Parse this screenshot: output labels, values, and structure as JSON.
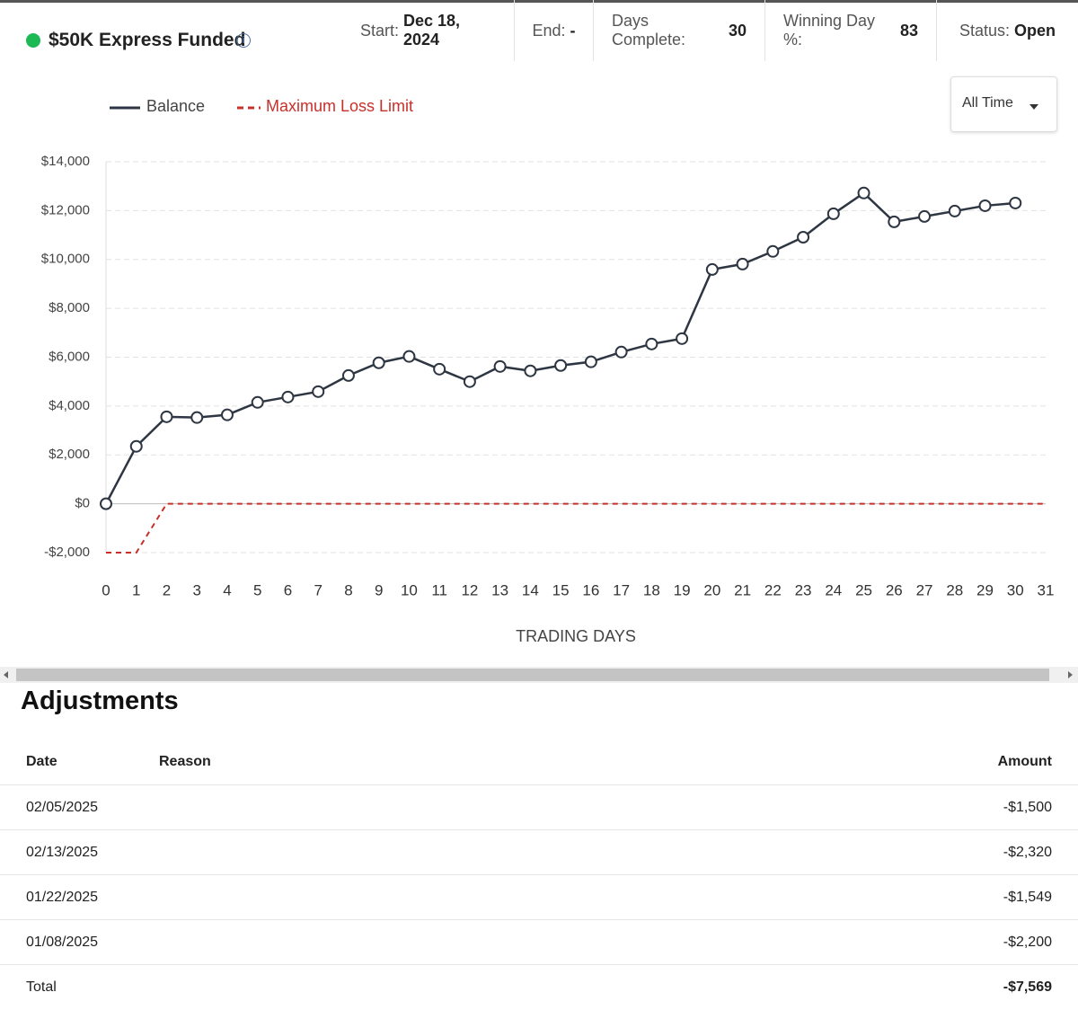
{
  "header": {
    "title": "$50K Express Funded",
    "stats": [
      {
        "label": "Start:",
        "value": "Dec 18, 2024"
      },
      {
        "label": "End:",
        "value": "-"
      },
      {
        "label": "Days Complete:",
        "value": "30"
      },
      {
        "label": "Winning Day %:",
        "value": "83"
      },
      {
        "label": "Status:",
        "value": "Open"
      }
    ]
  },
  "range_select": "All Time",
  "chart_data": {
    "type": "line",
    "xlabel": "TRADING DAYS",
    "x": [
      0,
      1,
      2,
      3,
      4,
      5,
      6,
      7,
      8,
      9,
      10,
      11,
      12,
      13,
      14,
      15,
      16,
      17,
      18,
      19,
      20,
      21,
      22,
      23,
      24,
      25,
      26,
      27,
      28,
      29,
      30,
      31
    ],
    "series": [
      {
        "name": "Balance",
        "color": "#2d3642",
        "values": [
          0,
          2350,
          3560,
          3530,
          3640,
          4150,
          4370,
          4590,
          5250,
          5770,
          6030,
          5510,
          5000,
          5620,
          5440,
          5660,
          5810,
          6210,
          6540,
          6760,
          9590,
          9810,
          10330,
          10910,
          11870,
          12720,
          11540,
          11760,
          11980,
          12200,
          12310,
          null
        ]
      },
      {
        "name": "Maximum Loss Limit",
        "color": "#c8302a",
        "dashed": true,
        "values": [
          -2000,
          -2000,
          0,
          0,
          0,
          0,
          0,
          0,
          0,
          0,
          0,
          0,
          0,
          0,
          0,
          0,
          0,
          0,
          0,
          0,
          0,
          0,
          0,
          0,
          0,
          0,
          0,
          0,
          0,
          0,
          0,
          0
        ]
      }
    ],
    "xlim": [
      0,
      31
    ],
    "xticks": [
      0,
      1,
      2,
      3,
      4,
      5,
      6,
      7,
      8,
      9,
      10,
      11,
      12,
      13,
      14,
      15,
      16,
      17,
      18,
      19,
      20,
      21,
      22,
      23,
      24,
      25,
      26,
      27,
      28,
      29,
      30,
      31
    ],
    "ylim": [
      -2000,
      14000
    ],
    "yticks": [
      {
        "value": -2000,
        "label": "-$2,000"
      },
      {
        "value": 0,
        "label": "$0"
      },
      {
        "value": 2000,
        "label": "$2,000"
      },
      {
        "value": 4000,
        "label": "$4,000"
      },
      {
        "value": 6000,
        "label": "$6,000"
      },
      {
        "value": 8000,
        "label": "$8,000"
      },
      {
        "value": 10000,
        "label": "$10,000"
      },
      {
        "value": 12000,
        "label": "$12,000"
      },
      {
        "value": 14000,
        "label": "$14,000"
      }
    ],
    "grid": true
  },
  "adjustments": {
    "title": "Adjustments",
    "columns": [
      "Date",
      "Reason",
      "Amount"
    ],
    "rows": [
      {
        "date": "02/05/2025",
        "amount": "-$1,500"
      },
      {
        "date": "02/13/2025",
        "amount": "-$2,320"
      },
      {
        "date": "01/22/2025",
        "amount": "-$1,549"
      },
      {
        "date": "01/08/2025",
        "amount": "-$2,200"
      }
    ],
    "total": {
      "label": "Total",
      "amount": "-$7,569"
    }
  }
}
